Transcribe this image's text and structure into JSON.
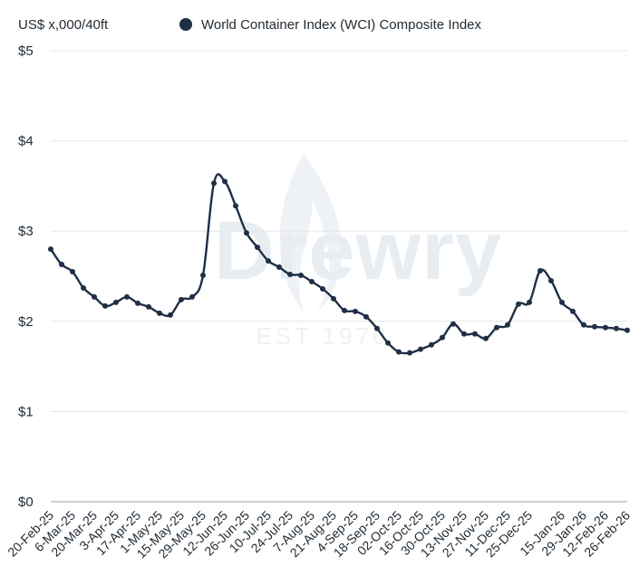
{
  "chart_data": {
    "type": "line",
    "title": "",
    "ylabel": "US$ x,000/40ft",
    "xlabel": "",
    "ylim": [
      0,
      5
    ],
    "yticks": [
      0,
      1,
      2,
      3,
      4,
      5
    ],
    "ytick_labels": [
      "$0",
      "$1",
      "$2",
      "$3",
      "$4",
      "$5"
    ],
    "grid": "horizontal",
    "legend_position": "top",
    "x_tick_labels": [
      "20-Feb-25",
      "6-Mar-25",
      "20-Mar-25",
      "3-Apr-25",
      "17-Apr-25",
      "1-May-25",
      "15-May-25",
      "29-May-25",
      "12-Jun-25",
      "26-Jun-25",
      "10-Jul-25",
      "24-Jul-25",
      "7-Aug-25",
      "21-Aug-25",
      "4-Sep-25",
      "18-Sep-25",
      "02-Oct-25",
      "16-Oct-25",
      "30-Oct-25",
      "13-Nov-25",
      "27-Nov-25",
      "11-Dec-25",
      "25-Dec-25",
      "15-Jan-26",
      "29-Jan-26",
      "12-Feb-26",
      "26-Feb-26"
    ],
    "x": [
      "20-Feb-25",
      "27-Feb-25",
      "6-Mar-25",
      "13-Mar-25",
      "20-Mar-25",
      "27-Mar-25",
      "3-Apr-25",
      "10-Apr-25",
      "17-Apr-25",
      "24-Apr-25",
      "1-May-25",
      "8-May-25",
      "15-May-25",
      "22-May-25",
      "29-May-25",
      "5-Jun-25",
      "12-Jun-25",
      "19-Jun-25",
      "26-Jun-25",
      "3-Jul-25",
      "10-Jul-25",
      "17-Jul-25",
      "24-Jul-25",
      "31-Jul-25",
      "7-Aug-25",
      "14-Aug-25",
      "21-Aug-25",
      "28-Aug-25",
      "4-Sep-25",
      "11-Sep-25",
      "18-Sep-25",
      "25-Sep-25",
      "02-Oct-25",
      "9-Oct-25",
      "16-Oct-25",
      "23-Oct-25",
      "30-Oct-25",
      "6-Nov-25",
      "13-Nov-25",
      "20-Nov-25",
      "27-Nov-25",
      "4-Dec-25",
      "11-Dec-25",
      "18-Dec-25",
      "25-Dec-25",
      "1-Jan-26",
      "8-Jan-26",
      "15-Jan-26",
      "22-Jan-26",
      "29-Jan-26",
      "5-Feb-26",
      "12-Feb-26",
      "19-Feb-26",
      "26-Feb-26"
    ],
    "series": [
      {
        "name": "World Container Index (WCI) Composite Index",
        "color": "#1f2f45",
        "values": [
          2.8,
          2.63,
          2.55,
          2.37,
          2.27,
          2.17,
          2.21,
          2.27,
          2.2,
          2.16,
          2.09,
          2.07,
          2.24,
          2.27,
          2.51,
          3.53,
          3.55,
          3.28,
          2.98,
          2.82,
          2.67,
          2.6,
          2.52,
          2.51,
          2.44,
          2.36,
          2.25,
          2.12,
          2.11,
          2.05,
          1.92,
          1.76,
          1.66,
          1.65,
          1.69,
          1.74,
          1.82,
          1.97,
          1.86,
          1.86,
          1.81,
          1.93,
          1.96,
          2.19,
          2.21,
          2.56,
          2.45,
          2.21,
          2.11,
          1.96,
          1.94,
          1.93,
          1.92,
          1.9
        ]
      }
    ]
  },
  "legend": {
    "marker_icon": "filled-circle",
    "label": "World Container Index (WCI) Composite Index"
  },
  "watermark": {
    "brand": "Drewry",
    "tagline": "EST 1970"
  }
}
